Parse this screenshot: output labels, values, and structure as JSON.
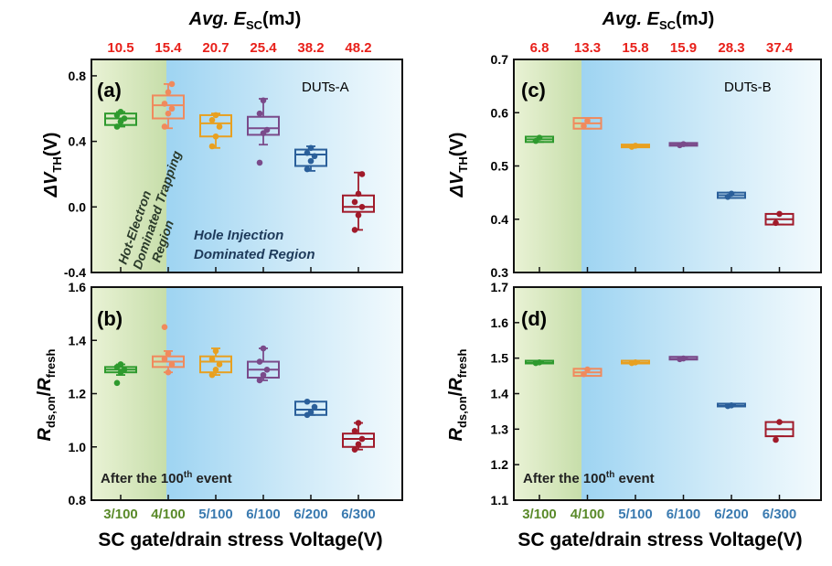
{
  "colors": {
    "green": "#2e9a2e",
    "salmon": "#f08a5d",
    "orange": "#e8a020",
    "purple": "#7a4a8a",
    "blue": "#2a5f9a",
    "darkred": "#a01a2a",
    "top_label_red": "#e8201a",
    "x_green_label": "#5a8a2a",
    "x_blue_label": "#3a7ab0"
  },
  "left": {
    "top_axis": {
      "title_prefix": "Avg. ",
      "title_var": "E",
      "title_sub": "SC",
      "title_unit": "(mJ)",
      "values": [
        "10.5",
        "15.4",
        "20.7",
        "25.4",
        "38.2",
        "48.2"
      ]
    },
    "x_categories": [
      "3/100",
      "4/100",
      "5/100",
      "6/100",
      "6/200",
      "6/300"
    ],
    "xlabel": "SC gate/drain stress Voltage(V)",
    "annotations": {
      "hot_line1": "Hot-Electron",
      "hot_line2": "Dominated Trapping",
      "hot_line3": "Region",
      "hole_line1": "Hole Injection",
      "hole_line2": "Dominated Region",
      "after_prefix": "After the 100",
      "after_sup": "th",
      "after_suffix": " event"
    }
  },
  "right": {
    "top_axis": {
      "title_prefix": "Avg. ",
      "title_var": "E",
      "title_sub": "SC",
      "title_unit": "(mJ)",
      "values": [
        "6.8",
        "13.3",
        "15.8",
        "15.9",
        "28.3",
        "37.4"
      ]
    },
    "x_categories": [
      "3/100",
      "4/100",
      "5/100",
      "6/100",
      "6/200",
      "6/300"
    ],
    "xlabel": "SC gate/drain stress Voltage(V)",
    "annotations": {
      "after_prefix": "After the 100",
      "after_sup": "th",
      "after_suffix": " event"
    }
  },
  "chart_data": [
    {
      "panel": "(a)",
      "type": "box",
      "title_tag": "DUTs-A",
      "ylabel_delta": "ΔV",
      "ylabel_sub": "TH",
      "ylabel_unit": "(V)",
      "ylim": [
        -0.4,
        0.9
      ],
      "yticks": [
        -0.4,
        0.0,
        0.4,
        0.8
      ],
      "ytick_labels": [
        "-0.4",
        "0.0",
        "0.4",
        "0.8"
      ],
      "boxes": [
        {
          "category": "3/100",
          "min": 0.49,
          "q1": 0.5,
          "median": 0.54,
          "q3": 0.57,
          "max": 0.58,
          "points": [
            0.49,
            0.52,
            0.54,
            0.56,
            0.58
          ]
        },
        {
          "category": "4/100",
          "min": 0.48,
          "q1": 0.54,
          "median": 0.62,
          "q3": 0.68,
          "max": 0.75,
          "points": [
            0.49,
            0.57,
            0.6,
            0.63,
            0.7,
            0.75
          ]
        },
        {
          "category": "5/100",
          "min": 0.36,
          "q1": 0.43,
          "median": 0.51,
          "q3": 0.56,
          "max": 0.57,
          "points": [
            0.37,
            0.43,
            0.49,
            0.53,
            0.56
          ]
        },
        {
          "category": "6/100",
          "min": 0.38,
          "q1": 0.44,
          "median": 0.48,
          "q3": 0.55,
          "max": 0.66,
          "points": [
            0.27,
            0.45,
            0.47,
            0.57,
            0.65
          ]
        },
        {
          "category": "6/200",
          "min": 0.22,
          "q1": 0.25,
          "median": 0.32,
          "q3": 0.35,
          "max": 0.37,
          "points": [
            0.23,
            0.28,
            0.31,
            0.33,
            0.36
          ]
        },
        {
          "category": "6/300",
          "min": -0.14,
          "q1": -0.03,
          "median": 0.0,
          "q3": 0.07,
          "max": 0.21,
          "points": [
            -0.14,
            -0.05,
            0.0,
            0.03,
            0.08,
            0.2
          ]
        }
      ]
    },
    {
      "panel": "(b)",
      "type": "box",
      "ylabel_r": "R",
      "ylabel_sub1": "ds,on",
      "ylabel_slash": "/",
      "ylabel_r2": "R",
      "ylabel_sub2": "fresh",
      "ylim": [
        0.8,
        1.6
      ],
      "yticks": [
        0.8,
        1.0,
        1.2,
        1.4,
        1.6
      ],
      "ytick_labels": [
        "0.8",
        "1.0",
        "1.2",
        "1.4",
        "1.6"
      ],
      "boxes": [
        {
          "category": "3/100",
          "min": 1.27,
          "q1": 1.28,
          "median": 1.29,
          "q3": 1.3,
          "max": 1.31,
          "points": [
            1.24,
            1.28,
            1.29,
            1.3,
            1.31
          ]
        },
        {
          "category": "4/100",
          "min": 1.28,
          "q1": 1.3,
          "median": 1.32,
          "q3": 1.34,
          "max": 1.36,
          "points": [
            1.45,
            1.28,
            1.31,
            1.33,
            1.35
          ]
        },
        {
          "category": "5/100",
          "min": 1.27,
          "q1": 1.28,
          "median": 1.32,
          "q3": 1.34,
          "max": 1.37,
          "points": [
            1.27,
            1.29,
            1.31,
            1.33,
            1.36
          ]
        },
        {
          "category": "6/100",
          "min": 1.25,
          "q1": 1.26,
          "median": 1.29,
          "q3": 1.32,
          "max": 1.37,
          "points": [
            1.25,
            1.27,
            1.29,
            1.32,
            1.37
          ]
        },
        {
          "category": "6/200",
          "min": 1.12,
          "q1": 1.12,
          "median": 1.14,
          "q3": 1.17,
          "max": 1.17,
          "points": [
            1.12,
            1.13,
            1.15,
            1.17
          ]
        },
        {
          "category": "6/300",
          "min": 0.99,
          "q1": 1.0,
          "median": 1.03,
          "q3": 1.05,
          "max": 1.09,
          "points": [
            0.99,
            1.01,
            1.03,
            1.06,
            1.09
          ]
        }
      ]
    },
    {
      "panel": "(c)",
      "type": "box",
      "title_tag": "DUTs-B",
      "ylabel_delta": "ΔV",
      "ylabel_sub": "TH",
      "ylabel_unit": "(V)",
      "ylim": [
        0.3,
        0.7
      ],
      "yticks": [
        0.3,
        0.4,
        0.5,
        0.6,
        0.7
      ],
      "ytick_labels": [
        "0.3",
        "0.4",
        "0.5",
        "0.6",
        "0.7"
      ],
      "boxes": [
        {
          "category": "3/100",
          "min": 0.545,
          "q1": 0.545,
          "median": 0.55,
          "q3": 0.555,
          "max": 0.555,
          "points": [
            0.547,
            0.553
          ]
        },
        {
          "category": "4/100",
          "min": 0.57,
          "q1": 0.57,
          "median": 0.58,
          "q3": 0.59,
          "max": 0.59,
          "points": [
            0.575,
            0.585
          ]
        },
        {
          "category": "5/100",
          "min": 0.535,
          "q1": 0.535,
          "median": 0.537,
          "q3": 0.539,
          "max": 0.539,
          "points": [
            0.536,
            0.538
          ]
        },
        {
          "category": "6/100",
          "min": 0.538,
          "q1": 0.538,
          "median": 0.54,
          "q3": 0.542,
          "max": 0.542,
          "points": [
            0.539,
            0.541
          ]
        },
        {
          "category": "6/200",
          "min": 0.44,
          "q1": 0.44,
          "median": 0.445,
          "q3": 0.45,
          "max": 0.45,
          "points": [
            0.442,
            0.448
          ]
        },
        {
          "category": "6/300",
          "min": 0.39,
          "q1": 0.39,
          "median": 0.4,
          "q3": 0.41,
          "max": 0.41,
          "points": [
            0.393,
            0.41
          ]
        }
      ]
    },
    {
      "panel": "(d)",
      "type": "box",
      "ylabel_r": "R",
      "ylabel_sub1": "ds,on",
      "ylabel_slash": "/",
      "ylabel_r2": "R",
      "ylabel_sub2": "fresh",
      "ylim": [
        1.1,
        1.7
      ],
      "yticks": [
        1.1,
        1.2,
        1.3,
        1.4,
        1.5,
        1.6,
        1.7
      ],
      "ytick_labels": [
        "1.1",
        "1.2",
        "1.3",
        "1.4",
        "1.5",
        "1.6",
        "1.7"
      ],
      "boxes": [
        {
          "category": "3/100",
          "min": 1.485,
          "q1": 1.485,
          "median": 1.487,
          "q3": 1.489,
          "max": 1.489,
          "points": [
            1.486,
            1.488
          ]
        },
        {
          "category": "4/100",
          "min": 1.45,
          "q1": 1.45,
          "median": 1.46,
          "q3": 1.47,
          "max": 1.47,
          "points": [
            1.455,
            1.468
          ]
        },
        {
          "category": "5/100",
          "min": 1.485,
          "q1": 1.485,
          "median": 1.487,
          "q3": 1.489,
          "max": 1.489,
          "points": [
            1.486,
            1.488
          ]
        },
        {
          "category": "6/100",
          "min": 1.496,
          "q1": 1.496,
          "median": 1.498,
          "q3": 1.5,
          "max": 1.5,
          "points": [
            1.497,
            1.499
          ]
        },
        {
          "category": "6/200",
          "min": 1.364,
          "q1": 1.364,
          "median": 1.366,
          "q3": 1.368,
          "max": 1.368,
          "points": [
            1.365,
            1.367
          ]
        },
        {
          "category": "6/300",
          "min": 1.28,
          "q1": 1.28,
          "median": 1.3,
          "q3": 1.32,
          "max": 1.32,
          "points": [
            1.27,
            1.32
          ]
        }
      ]
    }
  ]
}
